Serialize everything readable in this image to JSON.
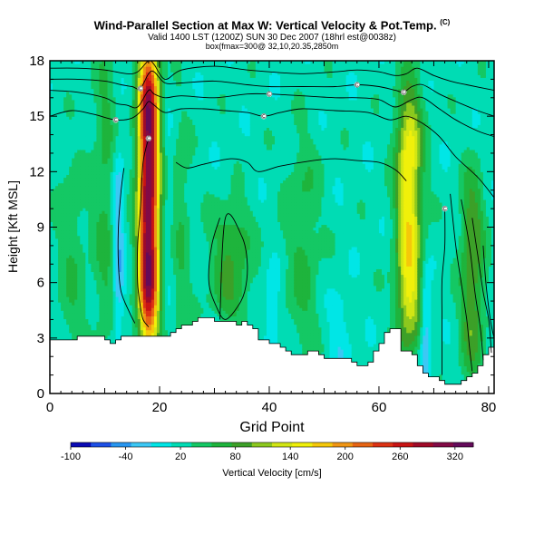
{
  "chart_data": {
    "type": "heatmap",
    "title": "Wind-Parallel Section at Max W: Vertical Velocity & Pot.Temp.",
    "title_mark": "(C)",
    "subtitle": "Valid 1400 LST (1200Z) SUN 30 Dec 2007 (18hrl est@0038z)",
    "subtitle2": "box(fmax=300@ 32,10,20.35,2850m",
    "xlabel": "Grid Point",
    "ylabel": "Height [Kft MSL]",
    "xlim": [
      0,
      81
    ],
    "ylim": [
      0,
      18
    ],
    "x_ticks": [
      0,
      20,
      40,
      60,
      80
    ],
    "y_ticks": [
      0,
      3,
      6,
      9,
      12,
      15,
      18
    ],
    "colorbar": {
      "label": "Vertical Velocity [cm/s]",
      "range": [
        -100,
        340
      ],
      "tick_values": [
        -100,
        -40,
        20,
        80,
        140,
        200,
        260,
        320
      ],
      "tick_labels": [
        "-100",
        "-40",
        "20",
        "80",
        "140",
        "200",
        "260",
        "320"
      ],
      "colors": [
        "#0a0ab4",
        "#1e50e6",
        "#2896f0",
        "#3cc8f5",
        "#00e6e6",
        "#00dcb4",
        "#14c864",
        "#1eb43c",
        "#3ca028",
        "#8cc81e",
        "#d2e614",
        "#f0f00a",
        "#f5c80a",
        "#f09614",
        "#e66414",
        "#dc3214",
        "#c81414",
        "#a00a28",
        "#820a46",
        "#640a5a"
      ]
    },
    "background_w": 20,
    "updrafts": [
      {
        "x": 18,
        "z_bottom": 3.5,
        "z_top": 18,
        "half_width": 1.8,
        "peak": 300
      },
      {
        "x": 65.5,
        "z_bottom": 3.5,
        "z_top": 15.5,
        "half_width": 2.2,
        "peak": 140
      },
      {
        "x": 33,
        "z_bottom": 4.5,
        "z_top": 9.5,
        "half_width": 3.5,
        "peak": 55
      },
      {
        "x": 77,
        "z_bottom": 2,
        "z_top": 11,
        "half_width": 2.0,
        "peak": 75
      },
      {
        "x": 4,
        "z_bottom": 3,
        "z_top": 12,
        "half_width": 2.5,
        "peak": 30
      },
      {
        "x": 46,
        "z_bottom": 3,
        "z_top": 13,
        "half_width": 3.0,
        "peak": 35
      },
      {
        "x": 24,
        "z_bottom": 3,
        "z_top": 14,
        "half_width": 1.5,
        "peak": 30
      },
      {
        "x": 10,
        "z_bottom": 4,
        "z_top": 18,
        "half_width": 2.0,
        "peak": 38
      }
    ],
    "downdrafts": [
      {
        "x": 12.5,
        "z_bottom": 4,
        "z_top": 12.5,
        "half_width": 1.0,
        "peak": -55
      },
      {
        "x": 68.5,
        "z_bottom": 1,
        "z_top": 6,
        "half_width": 0.9,
        "peak": -60
      },
      {
        "x": 40.5,
        "z_bottom": 3,
        "z_top": 6,
        "half_width": 1.2,
        "peak": -40
      },
      {
        "x": 53,
        "z_bottom": 1.5,
        "z_top": 5,
        "half_width": 2.0,
        "peak": -25
      },
      {
        "x": 21.5,
        "z_bottom": 4,
        "z_top": 16,
        "half_width": 0.8,
        "peak": -10
      }
    ],
    "terrain": {
      "x": [
        0,
        1,
        2,
        3,
        5,
        6,
        7,
        8,
        9,
        10,
        11,
        12,
        13,
        14,
        15,
        16,
        17,
        18,
        19,
        20,
        21,
        22,
        23,
        24,
        25,
        26,
        27,
        28,
        29,
        30,
        31,
        32,
        33,
        34,
        35,
        36,
        37,
        38,
        39,
        40,
        41,
        42,
        43,
        44,
        45,
        46,
        47,
        48,
        49,
        50,
        51,
        52,
        53,
        54,
        55,
        56,
        57,
        58,
        59,
        60,
        61,
        62,
        63,
        64,
        65,
        66,
        67,
        68,
        69,
        70,
        71,
        72,
        73,
        74,
        75,
        76,
        77,
        78,
        79,
        80,
        81
      ],
      "z": [
        2.9,
        2.9,
        2.9,
        2.9,
        3.1,
        3.1,
        3.1,
        3.1,
        3.1,
        2.9,
        2.7,
        2.9,
        3.1,
        3.1,
        3.1,
        3.1,
        3.1,
        3.1,
        3.1,
        3.1,
        3.1,
        3.3,
        3.5,
        3.7,
        3.7,
        3.9,
        4.1,
        4.1,
        4.1,
        3.9,
        3.9,
        3.9,
        3.9,
        3.7,
        3.9,
        3.7,
        3.5,
        2.9,
        2.9,
        2.7,
        2.7,
        2.5,
        2.3,
        2.1,
        2.1,
        2.1,
        2.3,
        2.3,
        2.1,
        1.9,
        1.9,
        1.9,
        1.9,
        1.9,
        1.7,
        1.5,
        1.5,
        1.7,
        2.3,
        2.7,
        3.3,
        3.5,
        3.5,
        2.3,
        2.3,
        2.1,
        1.5,
        1.1,
        0.9,
        0.9,
        0.7,
        0.5,
        0.5,
        0.5,
        0.7,
        0.9,
        1.1,
        1.5,
        2.1,
        2.5,
        2.7
      ]
    },
    "isentropes": {
      "label_symbol": "©",
      "lines": [
        {
          "x": [
            0,
            5,
            10,
            14,
            16,
            18,
            19,
            21,
            24,
            30,
            36,
            40,
            46,
            52,
            56,
            60,
            63,
            65,
            67,
            70,
            73,
            76,
            81
          ],
          "z": [
            17.6,
            17.6,
            17.5,
            17.3,
            17.4,
            18.0,
            17.8,
            17.0,
            17.5,
            17.7,
            17.5,
            17.4,
            17.3,
            17.4,
            17.5,
            17.4,
            17.2,
            17.3,
            17.6,
            17.2,
            16.9,
            16.7,
            16.4
          ],
          "labels": []
        },
        {
          "x": [
            0,
            5,
            10,
            13,
            15,
            16.5,
            18,
            19,
            21,
            24,
            30,
            36,
            40,
            46,
            52,
            56,
            60,
            63,
            64.5,
            66,
            68,
            71,
            74,
            78,
            81
          ],
          "z": [
            17.0,
            17.0,
            16.9,
            16.7,
            16.6,
            16.5,
            17.3,
            17.4,
            16.8,
            16.8,
            16.9,
            16.7,
            16.6,
            16.6,
            16.6,
            16.7,
            16.6,
            16.4,
            16.3,
            16.6,
            16.7,
            16.2,
            15.8,
            15.3,
            15.0
          ],
          "labels": [
            16.5,
            56,
            64.5
          ]
        },
        {
          "x": [
            0,
            5,
            10,
            12,
            14,
            16,
            18,
            19,
            21,
            24,
            30,
            36,
            40,
            46,
            52,
            56,
            60,
            63,
            66,
            68,
            71,
            74,
            78,
            81
          ],
          "z": [
            16.4,
            16.3,
            16.0,
            15.7,
            15.6,
            15.5,
            16.4,
            16.2,
            16.0,
            16.1,
            16.0,
            16.2,
            16.2,
            16.1,
            16.0,
            16.0,
            15.9,
            15.5,
            15.9,
            16.0,
            15.4,
            14.8,
            14.2,
            13.9
          ],
          "labels": [
            40
          ]
        },
        {
          "x": [
            0,
            4,
            8,
            12,
            15,
            17,
            18,
            19,
            21,
            24,
            28,
            32,
            36,
            39,
            42,
            46,
            52,
            58,
            62,
            65,
            68,
            71,
            74,
            78,
            81
          ],
          "z": [
            15.0,
            15.3,
            15.1,
            14.8,
            14.9,
            15.4,
            15.8,
            15.6,
            15.2,
            15.4,
            15.4,
            15.3,
            15.2,
            15.0,
            15.2,
            15.4,
            15.3,
            15.2,
            14.8,
            15.0,
            14.6,
            13.9,
            12.8,
            11.7,
            10.6
          ],
          "labels": [
            12,
            39
          ]
        },
        {
          "x": [
            18,
            17,
            16.5,
            16,
            16,
            16.5,
            17,
            18
          ],
          "z": [
            13.8,
            12.5,
            10.0,
            8.0,
            6.0,
            4.7,
            4.0,
            3.6
          ],
          "labels": [
            18
          ]
        },
        {
          "x": [
            13.5,
            13,
            12.5,
            12.5,
            13,
            14.5,
            15.5
          ],
          "z": [
            12.2,
            11.0,
            9.0,
            7.0,
            5.5,
            4.4,
            3.8
          ],
          "labels": []
        },
        {
          "x": [
            23,
            25,
            28,
            33,
            36,
            38,
            42,
            48,
            52,
            56,
            60,
            63,
            65
          ],
          "z": [
            12.5,
            12.2,
            12.4,
            12.7,
            12.5,
            12.0,
            12.3,
            12.6,
            12.7,
            12.6,
            12.5,
            12.1,
            11.5
          ],
          "labels": []
        },
        {
          "x": [
            31,
            32,
            35,
            36,
            35.5,
            34,
            32,
            30.5,
            29,
            29.5,
            31
          ],
          "z": [
            4.0,
            9.5,
            8.5,
            7.0,
            5.5,
            4.6,
            4.0,
            4.6,
            6.0,
            8.0,
            9.5
          ],
          "labels": []
        },
        {
          "x": [
            72,
            72,
            71.5,
            71.5,
            71.5
          ],
          "z": [
            10.0,
            8.0,
            6.1,
            4.0,
            1.0
          ],
          "labels": [
            72
          ]
        },
        {
          "x": [
            73,
            74,
            75,
            76,
            76.5,
            77
          ],
          "z": [
            10.8,
            8.0,
            6.0,
            4.0,
            2.5,
            1.2
          ],
          "labels": []
        },
        {
          "x": [
            75,
            76.5,
            77.5,
            78.5,
            79
          ],
          "z": [
            10.5,
            8.0,
            5.5,
            3.5,
            1.8
          ],
          "labels": []
        },
        {
          "x": [
            77,
            78,
            79,
            80,
            80.5
          ],
          "z": [
            9.5,
            7.5,
            5.5,
            4.0,
            2.2
          ],
          "labels": []
        },
        {
          "x": [
            79,
            79.5,
            80.3,
            81
          ],
          "z": [
            8.0,
            6.0,
            4.0,
            3.0
          ],
          "labels": []
        }
      ]
    }
  }
}
